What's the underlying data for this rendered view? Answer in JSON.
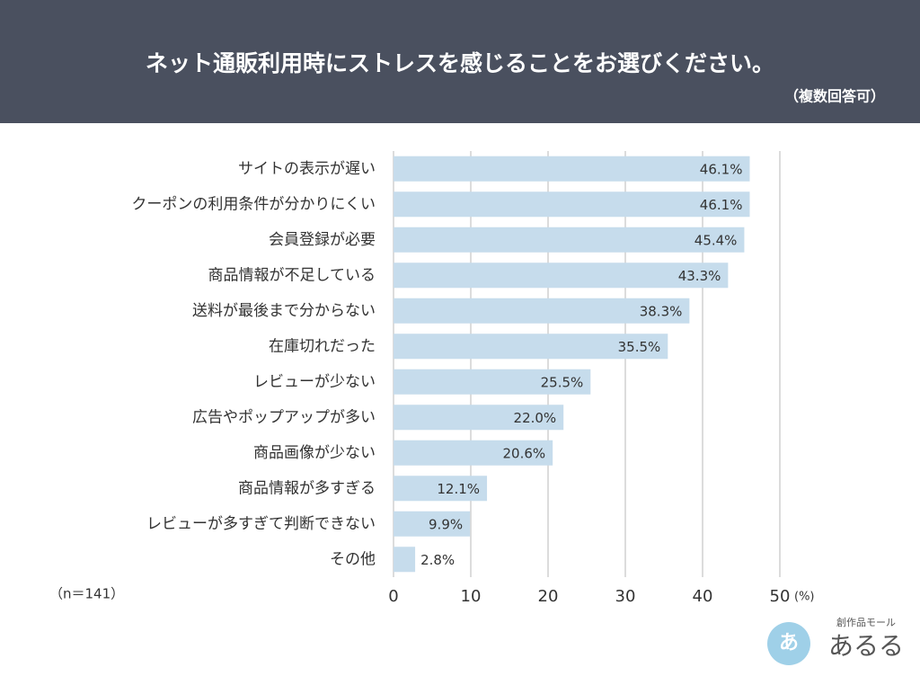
{
  "chart_data": {
    "type": "bar",
    "orientation": "horizontal",
    "title": "ネット通販利用時にストレスを感じることをお選びください。",
    "subtitle": "（複数回答可）",
    "note": "（n＝141）",
    "x_label": "(%)",
    "categories": [
      "サイトの表示が遅い",
      "クーポンの利用条件が分かりにくい",
      "会員登録が必要",
      "商品情報が不足している",
      "送料が最後まで分からない",
      "在庫切れだった",
      "レビューが少ない",
      "広告やポップアップが多い",
      "商品画像が少ない",
      "商品情報が多すぎる",
      "レビューが多すぎて判断できない",
      "その他"
    ],
    "values": [
      46.1,
      46.1,
      45.4,
      43.3,
      38.3,
      35.5,
      25.5,
      22.0,
      20.6,
      12.1,
      9.9,
      2.8
    ],
    "value_labels": [
      "46.1%",
      "46.1%",
      "45.4%",
      "43.3%",
      "38.3%",
      "35.5%",
      "25.5%",
      "22.0%",
      "20.6%",
      "12.1%",
      "9.9%",
      "2.8%"
    ],
    "color": "#c6dcec",
    "xlim": [
      0,
      50
    ],
    "xticks": [
      0,
      10,
      20,
      30,
      40,
      50
    ],
    "grid": true,
    "logo": {
      "tagline": "創作品モール",
      "name": "あるる"
    }
  }
}
